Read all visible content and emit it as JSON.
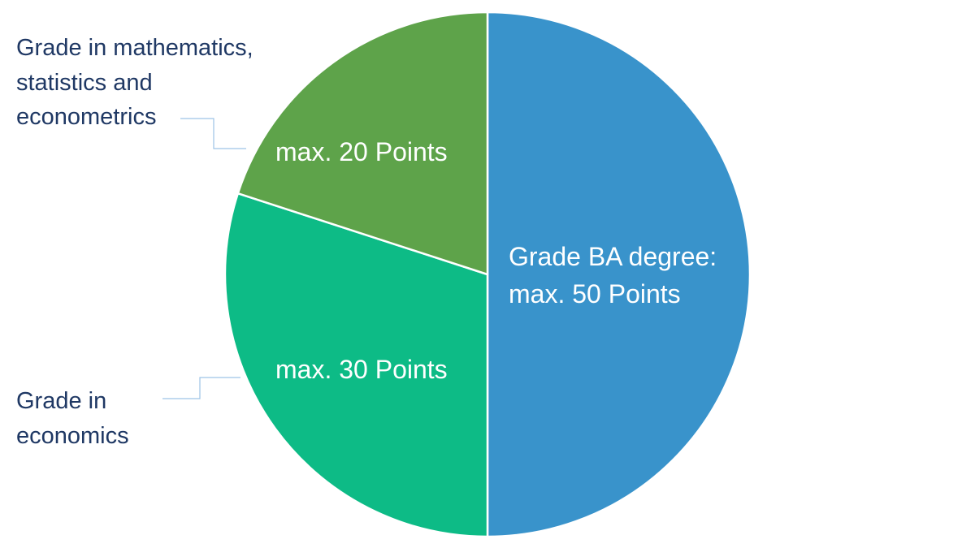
{
  "chart_data": {
    "type": "pie",
    "start_angle": "12 o'clock",
    "direction": "clockwise",
    "slices": [
      {
        "label_lines": [
          "Grade BA degree:",
          "max. 50 Points"
        ],
        "value": 50,
        "color": "#3993cb",
        "callout_lines": []
      },
      {
        "label_lines": [
          "max. 30 Points"
        ],
        "value": 30,
        "color": "#0dbb86",
        "callout_lines": [
          "Grade in",
          "economics"
        ]
      },
      {
        "label_lines": [
          "max. 20 Points"
        ],
        "value": 20,
        "color": "#5ea34a",
        "callout_lines": [
          "Grade in mathematics,",
          "statistics and",
          "econometrics"
        ]
      }
    ],
    "slice_border_color": "#ffffff",
    "leader_line_color": "#9dc3e6",
    "legend": "none"
  }
}
